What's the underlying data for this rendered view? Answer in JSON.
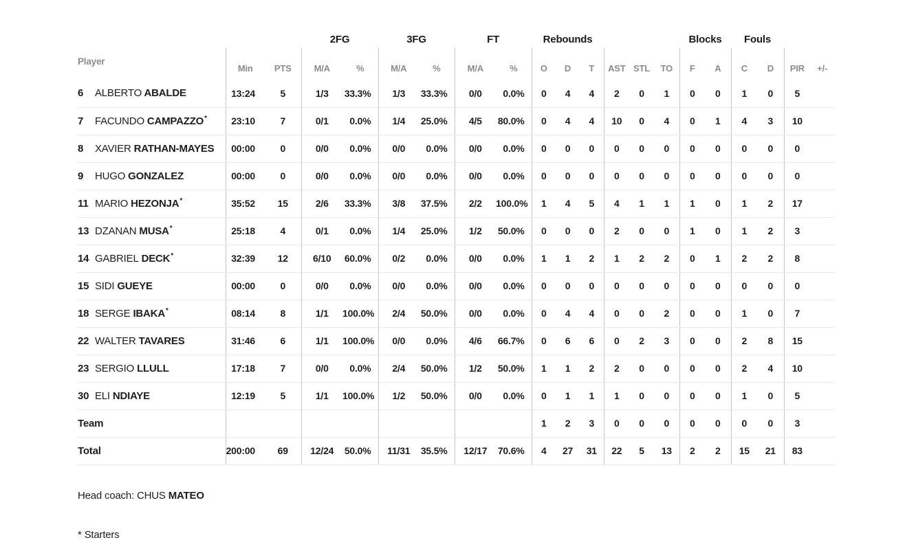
{
  "table": {
    "starter_mark": "*",
    "group_headers": {
      "fg2": "2FG",
      "fg3": "3FG",
      "ft": "FT",
      "rebounds": "Rebounds",
      "blocks": "Blocks",
      "fouls": "Fouls"
    },
    "col_headers": {
      "player": "Player",
      "min": "Min",
      "pts": "PTS",
      "fg2_ma": "M/A",
      "fg2_pct": "%",
      "fg3_ma": "M/A",
      "fg3_pct": "%",
      "ft_ma": "M/A",
      "ft_pct": "%",
      "reb_o": "O",
      "reb_d": "D",
      "reb_t": "T",
      "ast": "AST",
      "stl": "STL",
      "to": "TO",
      "blk_f": "F",
      "blk_a": "A",
      "foul_c": "C",
      "foul_d": "D",
      "pir": "PIR",
      "plusminus": "+/-"
    },
    "rows": [
      {
        "type": "player",
        "number": "6",
        "first": "ALBERTO",
        "last": "ABALDE",
        "starter": false,
        "min": "13:24",
        "pts": "5",
        "fg2_ma": "1/3",
        "fg2_pct": "33.3%",
        "fg3_ma": "1/3",
        "fg3_pct": "33.3%",
        "ft_ma": "0/0",
        "ft_pct": "0.0%",
        "reb_o": "0",
        "reb_d": "4",
        "reb_t": "4",
        "ast": "2",
        "stl": "0",
        "to": "1",
        "blk_f": "0",
        "blk_a": "0",
        "foul_c": "1",
        "foul_d": "0",
        "pir": "5",
        "plusminus": ""
      },
      {
        "type": "player",
        "number": "7",
        "first": "FACUNDO",
        "last": "CAMPAZZO",
        "starter": true,
        "min": "23:10",
        "pts": "7",
        "fg2_ma": "0/1",
        "fg2_pct": "0.0%",
        "fg3_ma": "1/4",
        "fg3_pct": "25.0%",
        "ft_ma": "4/5",
        "ft_pct": "80.0%",
        "reb_o": "0",
        "reb_d": "4",
        "reb_t": "4",
        "ast": "10",
        "stl": "0",
        "to": "4",
        "blk_f": "0",
        "blk_a": "1",
        "foul_c": "4",
        "foul_d": "3",
        "pir": "10",
        "plusminus": ""
      },
      {
        "type": "player",
        "number": "8",
        "first": "XAVIER",
        "last": "RATHAN-MAYES",
        "starter": false,
        "min": "00:00",
        "pts": "0",
        "fg2_ma": "0/0",
        "fg2_pct": "0.0%",
        "fg3_ma": "0/0",
        "fg3_pct": "0.0%",
        "ft_ma": "0/0",
        "ft_pct": "0.0%",
        "reb_o": "0",
        "reb_d": "0",
        "reb_t": "0",
        "ast": "0",
        "stl": "0",
        "to": "0",
        "blk_f": "0",
        "blk_a": "0",
        "foul_c": "0",
        "foul_d": "0",
        "pir": "0",
        "plusminus": ""
      },
      {
        "type": "player",
        "number": "9",
        "first": "HUGO",
        "last": "GONZALEZ",
        "starter": false,
        "min": "00:00",
        "pts": "0",
        "fg2_ma": "0/0",
        "fg2_pct": "0.0%",
        "fg3_ma": "0/0",
        "fg3_pct": "0.0%",
        "ft_ma": "0/0",
        "ft_pct": "0.0%",
        "reb_o": "0",
        "reb_d": "0",
        "reb_t": "0",
        "ast": "0",
        "stl": "0",
        "to": "0",
        "blk_f": "0",
        "blk_a": "0",
        "foul_c": "0",
        "foul_d": "0",
        "pir": "0",
        "plusminus": ""
      },
      {
        "type": "player",
        "number": "11",
        "first": "MARIO",
        "last": "HEZONJA",
        "starter": true,
        "min": "35:52",
        "pts": "15",
        "fg2_ma": "2/6",
        "fg2_pct": "33.3%",
        "fg3_ma": "3/8",
        "fg3_pct": "37.5%",
        "ft_ma": "2/2",
        "ft_pct": "100.0%",
        "reb_o": "1",
        "reb_d": "4",
        "reb_t": "5",
        "ast": "4",
        "stl": "1",
        "to": "1",
        "blk_f": "1",
        "blk_a": "0",
        "foul_c": "1",
        "foul_d": "2",
        "pir": "17",
        "plusminus": ""
      },
      {
        "type": "player",
        "number": "13",
        "first": "DZANAN",
        "last": "MUSA",
        "starter": true,
        "min": "25:18",
        "pts": "4",
        "fg2_ma": "0/1",
        "fg2_pct": "0.0%",
        "fg3_ma": "1/4",
        "fg3_pct": "25.0%",
        "ft_ma": "1/2",
        "ft_pct": "50.0%",
        "reb_o": "0",
        "reb_d": "0",
        "reb_t": "0",
        "ast": "2",
        "stl": "0",
        "to": "0",
        "blk_f": "1",
        "blk_a": "0",
        "foul_c": "1",
        "foul_d": "2",
        "pir": "3",
        "plusminus": ""
      },
      {
        "type": "player",
        "number": "14",
        "first": "GABRIEL",
        "last": "DECK",
        "starter": true,
        "min": "32:39",
        "pts": "12",
        "fg2_ma": "6/10",
        "fg2_pct": "60.0%",
        "fg3_ma": "0/2",
        "fg3_pct": "0.0%",
        "ft_ma": "0/0",
        "ft_pct": "0.0%",
        "reb_o": "1",
        "reb_d": "1",
        "reb_t": "2",
        "ast": "1",
        "stl": "2",
        "to": "2",
        "blk_f": "0",
        "blk_a": "1",
        "foul_c": "2",
        "foul_d": "2",
        "pir": "8",
        "plusminus": ""
      },
      {
        "type": "player",
        "number": "15",
        "first": "SIDI",
        "last": "GUEYE",
        "starter": false,
        "min": "00:00",
        "pts": "0",
        "fg2_ma": "0/0",
        "fg2_pct": "0.0%",
        "fg3_ma": "0/0",
        "fg3_pct": "0.0%",
        "ft_ma": "0/0",
        "ft_pct": "0.0%",
        "reb_o": "0",
        "reb_d": "0",
        "reb_t": "0",
        "ast": "0",
        "stl": "0",
        "to": "0",
        "blk_f": "0",
        "blk_a": "0",
        "foul_c": "0",
        "foul_d": "0",
        "pir": "0",
        "plusminus": ""
      },
      {
        "type": "player",
        "number": "18",
        "first": "SERGE",
        "last": "IBAKA",
        "starter": true,
        "min": "08:14",
        "pts": "8",
        "fg2_ma": "1/1",
        "fg2_pct": "100.0%",
        "fg3_ma": "2/4",
        "fg3_pct": "50.0%",
        "ft_ma": "0/0",
        "ft_pct": "0.0%",
        "reb_o": "0",
        "reb_d": "4",
        "reb_t": "4",
        "ast": "0",
        "stl": "0",
        "to": "2",
        "blk_f": "0",
        "blk_a": "0",
        "foul_c": "1",
        "foul_d": "0",
        "pir": "7",
        "plusminus": ""
      },
      {
        "type": "player",
        "number": "22",
        "first": "WALTER",
        "last": "TAVARES",
        "starter": false,
        "min": "31:46",
        "pts": "6",
        "fg2_ma": "1/1",
        "fg2_pct": "100.0%",
        "fg3_ma": "0/0",
        "fg3_pct": "0.0%",
        "ft_ma": "4/6",
        "ft_pct": "66.7%",
        "reb_o": "0",
        "reb_d": "6",
        "reb_t": "6",
        "ast": "0",
        "stl": "2",
        "to": "3",
        "blk_f": "0",
        "blk_a": "0",
        "foul_c": "2",
        "foul_d": "8",
        "pir": "15",
        "plusminus": ""
      },
      {
        "type": "player",
        "number": "23",
        "first": "SERGIO",
        "last": "LLULL",
        "starter": false,
        "min": "17:18",
        "pts": "7",
        "fg2_ma": "0/0",
        "fg2_pct": "0.0%",
        "fg3_ma": "2/4",
        "fg3_pct": "50.0%",
        "ft_ma": "1/2",
        "ft_pct": "50.0%",
        "reb_o": "1",
        "reb_d": "1",
        "reb_t": "2",
        "ast": "2",
        "stl": "0",
        "to": "0",
        "blk_f": "0",
        "blk_a": "0",
        "foul_c": "2",
        "foul_d": "4",
        "pir": "10",
        "plusminus": ""
      },
      {
        "type": "player",
        "number": "30",
        "first": "ELI",
        "last": "NDIAYE",
        "starter": false,
        "min": "12:19",
        "pts": "5",
        "fg2_ma": "1/1",
        "fg2_pct": "100.0%",
        "fg3_ma": "1/2",
        "fg3_pct": "50.0%",
        "ft_ma": "0/0",
        "ft_pct": "0.0%",
        "reb_o": "0",
        "reb_d": "1",
        "reb_t": "1",
        "ast": "1",
        "stl": "0",
        "to": "0",
        "blk_f": "0",
        "blk_a": "0",
        "foul_c": "1",
        "foul_d": "0",
        "pir": "5",
        "plusminus": ""
      },
      {
        "type": "team",
        "label": "Team",
        "min": "",
        "pts": "",
        "fg2_ma": "",
        "fg2_pct": "",
        "fg3_ma": "",
        "fg3_pct": "",
        "ft_ma": "",
        "ft_pct": "",
        "reb_o": "1",
        "reb_d": "2",
        "reb_t": "3",
        "ast": "0",
        "stl": "0",
        "to": "0",
        "blk_f": "0",
        "blk_a": "0",
        "foul_c": "0",
        "foul_d": "0",
        "pir": "3",
        "plusminus": ""
      },
      {
        "type": "total",
        "label": "Total",
        "min": "200:00",
        "pts": "69",
        "fg2_ma": "12/24",
        "fg2_pct": "50.0%",
        "fg3_ma": "11/31",
        "fg3_pct": "35.5%",
        "ft_ma": "12/17",
        "ft_pct": "70.6%",
        "reb_o": "4",
        "reb_d": "27",
        "reb_t": "31",
        "ast": "22",
        "stl": "5",
        "to": "13",
        "blk_f": "2",
        "blk_a": "2",
        "foul_c": "15",
        "foul_d": "21",
        "pir": "83",
        "plusminus": ""
      }
    ]
  },
  "footer": {
    "head_coach_label": "Head coach:",
    "head_coach_first": "CHUS",
    "head_coach_last": "MATEO",
    "starters_note": "* Starters"
  }
}
